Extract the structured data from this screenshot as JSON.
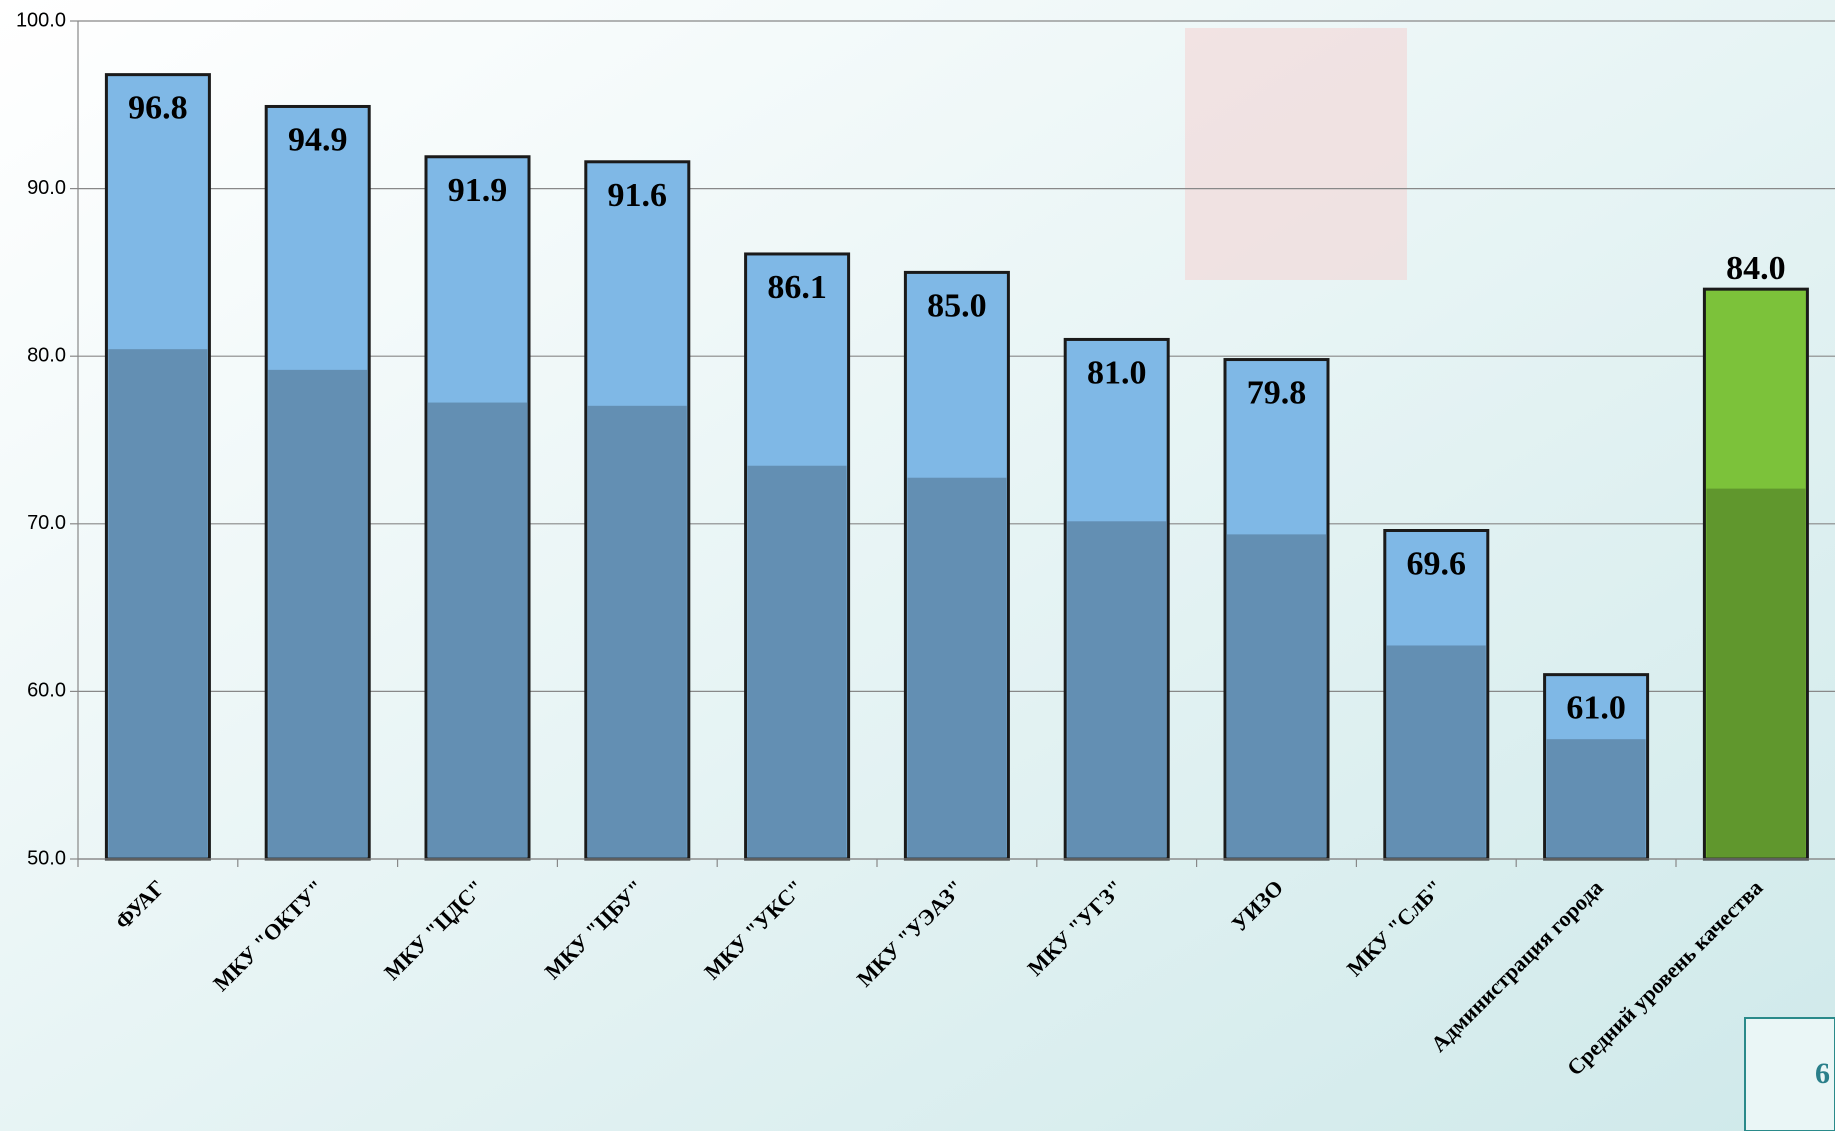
{
  "chart_data": {
    "type": "bar",
    "categories": [
      "ФУАГ",
      "МКУ \"ОКТУ\"",
      "МКУ \"ЦДС\"",
      "МКУ \"ЦБУ\"",
      "МКУ \"УКС\"",
      "МКУ \"УЭАЗ\"",
      "МКУ \"УГЗ\"",
      "УИЗО",
      "МКУ \"СлБ\"",
      "Администрация города",
      "Средний уровень качества"
    ],
    "values": [
      96.8,
      94.9,
      91.9,
      91.6,
      86.1,
      85.0,
      81.0,
      79.8,
      69.6,
      61.0,
      84.0
    ],
    "value_labels": [
      "96.8",
      "94.9",
      "91.9",
      "91.6",
      "86.1",
      "85.0",
      "81.0",
      "79.8",
      "69.6",
      "61.0",
      "84.0"
    ],
    "colors": [
      "#7fb8e6",
      "#7fb8e6",
      "#7fb8e6",
      "#7fb8e6",
      "#7fb8e6",
      "#7fb8e6",
      "#7fb8e6",
      "#7fb8e6",
      "#7fb8e6",
      "#7fb8e6",
      "#7cc23a"
    ],
    "ylim": [
      50,
      100
    ],
    "yticks": [
      {
        "value": 50,
        "label": "50.0"
      },
      {
        "value": 60,
        "label": "60.0"
      },
      {
        "value": 70,
        "label": "70.0"
      },
      {
        "value": 80,
        "label": "80.0"
      },
      {
        "value": 90,
        "label": "90.0"
      },
      {
        "value": 100,
        "label": "100.0"
      }
    ],
    "grid": true
  },
  "slide_number": "6"
}
